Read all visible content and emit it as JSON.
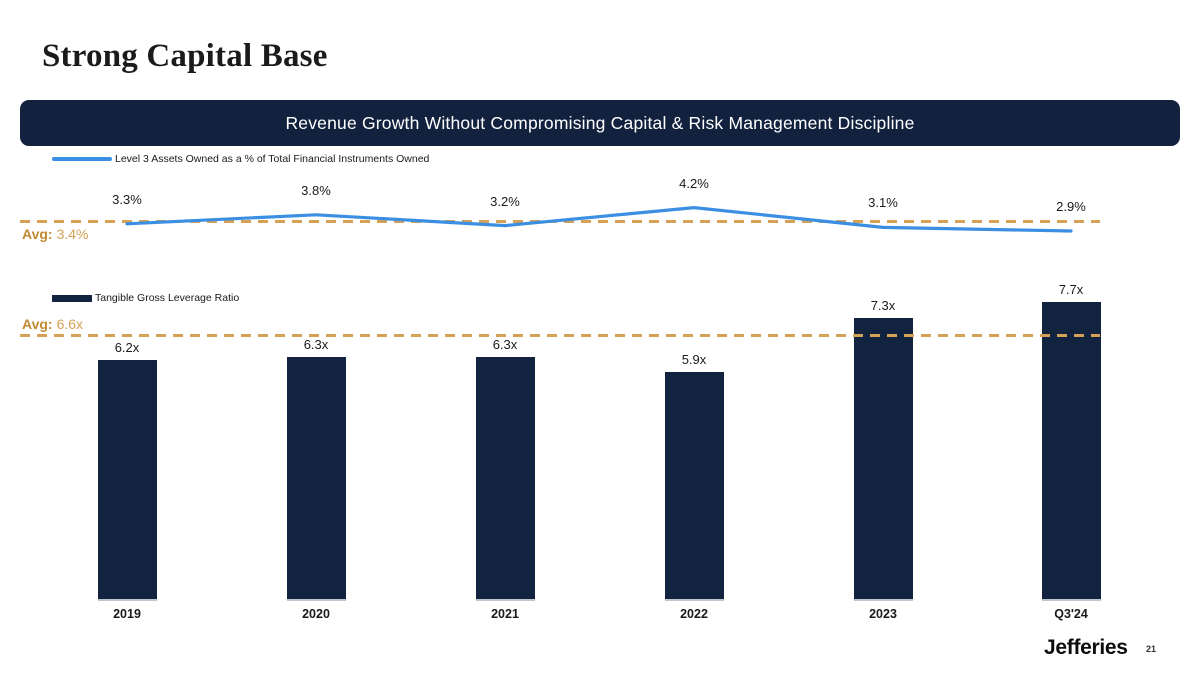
{
  "slide": {
    "title": "Strong Capital Base",
    "banner": "Revenue Growth Without Compromising Capital & Risk Management Discipline",
    "footer": {
      "logo": "Jefferies",
      "page_number": "21"
    }
  },
  "colors": {
    "navy": "#12233F",
    "banner_navy": "#12213E",
    "line_blue": "#3B8FE2",
    "gold": "#D5A156",
    "gold_dark": "#C28A33"
  },
  "chart_data": [
    {
      "type": "line",
      "legend": "Level 3 Assets Owned as a % of Total Financial Instruments Owned",
      "categories": [
        "2019",
        "2020",
        "2021",
        "2022",
        "2023",
        "Q3'24"
      ],
      "values": [
        3.3,
        3.8,
        3.2,
        4.2,
        3.1,
        2.9
      ],
      "labels": [
        "3.3%",
        "3.8%",
        "3.2%",
        "4.2%",
        "3.1%",
        "2.9%"
      ],
      "average": {
        "label_prefix": "Avg:",
        "label_value": "3.4%",
        "value": 3.4
      },
      "line_color": "#3B8FE2",
      "legend_position": "top-left",
      "grid": false,
      "x_axis_labels_visible": false
    },
    {
      "type": "bar",
      "legend": "Tangible Gross Leverage Ratio",
      "categories": [
        "2019",
        "2020",
        "2021",
        "2022",
        "2023",
        "Q3'24"
      ],
      "values": [
        6.2,
        6.3,
        6.3,
        5.9,
        7.3,
        7.7
      ],
      "labels": [
        "6.2x",
        "6.3x",
        "6.3x",
        "5.9x",
        "7.3x",
        "7.7x"
      ],
      "average": {
        "label_prefix": "Avg:",
        "label_value": "6.6x",
        "value": 6.6
      },
      "bar_color": "#12233F",
      "legend_position": "top-left",
      "grid": false,
      "ylim": [
        0,
        8
      ],
      "x_axis_labels_visible": true
    }
  ]
}
